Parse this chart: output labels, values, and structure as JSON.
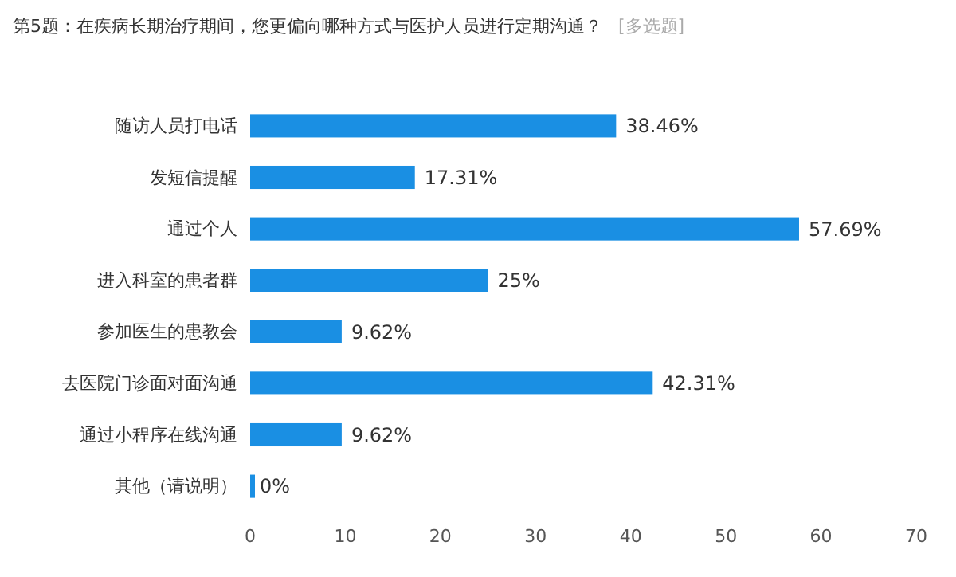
{
  "chart_data": {
    "type": "bar",
    "orientation": "horizontal",
    "title": "第5题：在疾病长期治疗期间，您更偏向哪种方式与医护人员进行定期沟通？",
    "subtitle": "[多选题]",
    "categories": [
      "随访人员打电话",
      "发短信提醒",
      "通过个人",
      "进入科室的患者群",
      "参加医生的患教会",
      "去医院门诊面对面沟通",
      "通过小程序在线沟通",
      "其他（请说明）"
    ],
    "values": [
      38.46,
      17.31,
      57.69,
      25,
      9.62,
      42.31,
      9.62,
      0
    ],
    "value_labels": [
      "38.46%",
      "17.31%",
      "57.69%",
      "25%",
      "9.62%",
      "42.31%",
      "9.62%",
      "0%"
    ],
    "color": "#1a8fe3",
    "xlim": [
      0,
      70
    ],
    "xticks": [
      0,
      10,
      20,
      30,
      40,
      50,
      60,
      70
    ],
    "grid": false
  }
}
